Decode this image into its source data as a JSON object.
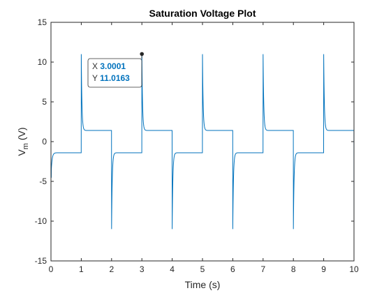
{
  "chart_data": {
    "type": "line",
    "title": "Saturation Voltage Plot",
    "xlabel": "Time (s)",
    "ylabel_main": "V",
    "ylabel_sub": "m",
    "ylabel_unit": " (V)",
    "xlim": [
      0,
      10
    ],
    "ylim": [
      -15,
      15
    ],
    "xticks": [
      0,
      1,
      2,
      3,
      4,
      5,
      6,
      7,
      8,
      9,
      10
    ],
    "yticks": [
      -15,
      -10,
      -5,
      0,
      5,
      10,
      15
    ],
    "grid": false,
    "series": [
      {
        "color": "#0072BD",
        "period": 2,
        "high_level": 1.4,
        "low_level": -1.4,
        "rise_spike": 11.0,
        "fall_spike": -11.0,
        "start_value": -4.5
      }
    ],
    "datatip": {
      "x_label": "X",
      "x_value": "3.0001",
      "y_label": "Y",
      "y_value": "11.0163",
      "x": 3.0001,
      "y": 11.0163,
      "value_color": "#0072BD"
    }
  }
}
